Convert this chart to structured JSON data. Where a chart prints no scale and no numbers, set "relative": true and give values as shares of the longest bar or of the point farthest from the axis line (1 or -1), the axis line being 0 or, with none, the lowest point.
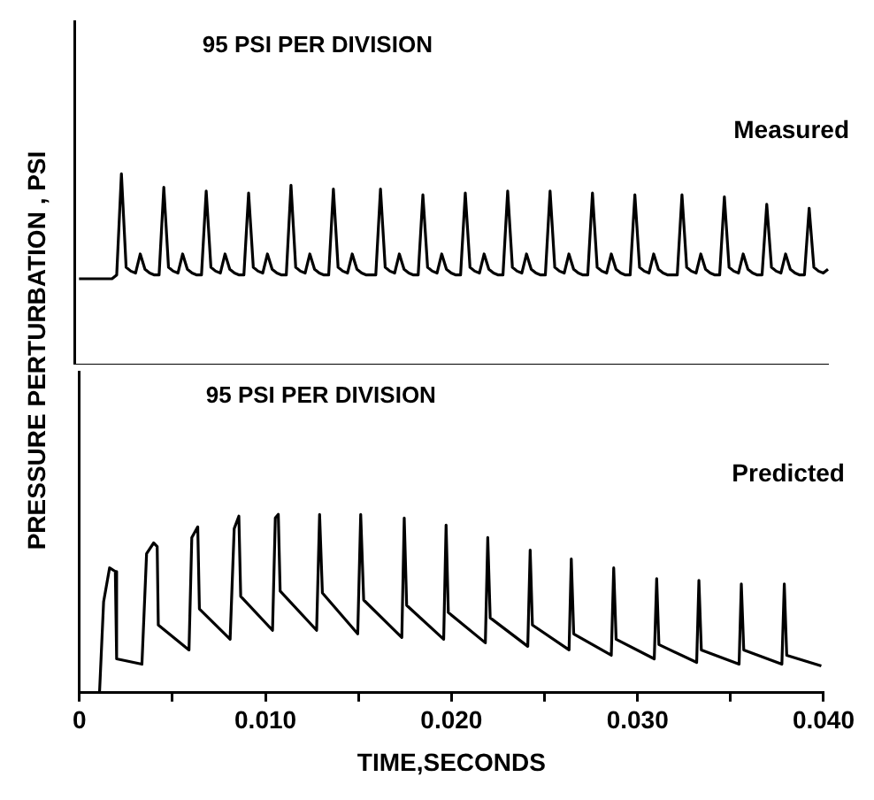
{
  "chart_data": [
    {
      "type": "line",
      "ylabel": "PRESSURE PERTURBATION , PSI",
      "annotations": [
        "95 PSI PER DIVISION"
      ],
      "relative": true,
      "categories": [
        null,
        null,
        null,
        null,
        null,
        null,
        null,
        null,
        null,
        null,
        null,
        null,
        null,
        null,
        null,
        null,
        null,
        null,
        null,
        null,
        null,
        null,
        null,
        null,
        null,
        null,
        null,
        null,
        null,
        null,
        null,
        null,
        null,
        null,
        null,
        null,
        null,
        null,
        null,
        null,
        null,
        null,
        null,
        null,
        null,
        null,
        null,
        null,
        null,
        null,
        null,
        null,
        null,
        null,
        null,
        null,
        null,
        null,
        null,
        null,
        null,
        null,
        null,
        null,
        null,
        null,
        null,
        null,
        null,
        null,
        null,
        null,
        null,
        null,
        null,
        null,
        null,
        null,
        null,
        null,
        null,
        null,
        null,
        null,
        null,
        null,
        null,
        null,
        null,
        null,
        null,
        null,
        null,
        null,
        null,
        null,
        null,
        null,
        null,
        null,
        null,
        null,
        null,
        null,
        null,
        null,
        null,
        null,
        null,
        null,
        null,
        null,
        null,
        null,
        null,
        null,
        null,
        null,
        null,
        null,
        null,
        null,
        null,
        null,
        null,
        null,
        null,
        null,
        null,
        null,
        null,
        null,
        null,
        null,
        null,
        null,
        null,
        null,
        null,
        null,
        null,
        null,
        null,
        null,
        null,
        null,
        null,
        null,
        null,
        null,
        null,
        null,
        null,
        null,
        null,
        null,
        null,
        null,
        null,
        null,
        null
      ],
      "tick_labels": false,
      "grid": false,
      "legend": false,
      "marker": "none",
      "line_style": "solid",
      "series": [
        {
          "name": "Measured",
          "color": "#000000",
          "values": [
            null,
            0.45,
            0.45,
            0.45,
            0.45,
            0.45,
            0.45,
            0.45,
            0.45,
            0.47,
            1.0,
            0.51,
            0.49,
            0.48,
            0.58,
            0.5,
            0.48,
            0.47,
            0.47,
            0.93,
            0.51,
            0.49,
            0.48,
            0.58,
            0.5,
            0.48,
            0.47,
            0.47,
            0.91,
            0.51,
            0.49,
            0.48,
            0.58,
            0.5,
            0.48,
            0.47,
            0.47,
            0.9,
            0.51,
            0.49,
            0.48,
            0.58,
            0.5,
            0.48,
            0.47,
            0.47,
            0.94,
            0.51,
            0.49,
            0.48,
            0.58,
            0.5,
            0.48,
            0.47,
            0.47,
            0.92,
            0.51,
            0.49,
            0.48,
            0.58,
            0.5,
            0.48,
            0.47,
            0.47,
            0.47,
            0.92,
            0.51,
            0.49,
            0.48,
            0.58,
            0.5,
            0.48,
            0.47,
            0.47,
            0.89,
            0.51,
            0.49,
            0.48,
            0.58,
            0.5,
            0.48,
            0.47,
            0.47,
            0.9,
            0.51,
            0.49,
            0.48,
            0.58,
            0.5,
            0.48,
            0.47,
            0.47,
            0.91,
            0.51,
            0.49,
            0.48,
            0.58,
            0.5,
            0.48,
            0.47,
            0.47,
            0.91,
            0.51,
            0.49,
            0.48,
            0.58,
            0.5,
            0.48,
            0.47,
            0.47,
            0.9,
            0.51,
            0.49,
            0.48,
            0.58,
            0.5,
            0.48,
            0.47,
            0.47,
            0.89,
            0.51,
            0.49,
            0.48,
            0.58,
            0.5,
            0.48,
            0.47,
            0.47,
            0.47,
            0.89,
            0.51,
            0.49,
            0.48,
            0.58,
            0.5,
            0.48,
            0.47,
            0.47,
            0.88,
            0.51,
            0.49,
            0.48,
            0.58,
            0.5,
            0.48,
            0.47,
            0.47,
            0.84,
            0.51,
            0.49,
            0.48,
            0.58,
            0.5,
            0.48,
            0.47,
            0.47,
            0.82,
            0.51,
            0.49,
            0.48,
            0.5
          ]
        }
      ]
    },
    {
      "type": "line",
      "xlabel": "TIME,SECONDS",
      "annotations": [
        "95 PSI PER DIVISION"
      ],
      "relative": true,
      "xlim": [
        0,
        0.04
      ],
      "xticks": [
        0,
        {
          "value": 0.005,
          "label": null
        },
        {
          "value": 0.01,
          "label": "0.010"
        },
        {
          "value": 0.015,
          "label": null
        },
        {
          "value": 0.02,
          "label": "0.020"
        },
        {
          "value": 0.025,
          "label": null
        },
        {
          "value": 0.03,
          "label": "0.030"
        },
        {
          "value": 0.035,
          "label": null
        },
        {
          "value": 0.04,
          "label": "0.040"
        }
      ],
      "tick_labels": "x",
      "grid": false,
      "legend": false,
      "marker": "none",
      "line_style": "solid",
      "series": [
        {
          "name": "Predicted",
          "color": "#000000",
          "x": [
            0.0,
            0.00108,
            0.0013,
            0.00162,
            0.00193,
            0.002,
            0.00336,
            0.00361,
            0.00399,
            0.00418,
            0.00424,
            0.00589,
            0.00604,
            0.00636,
            0.00645,
            0.0081,
            0.00832,
            0.00857,
            0.00867,
            0.01038,
            0.01053,
            0.01069,
            0.01079,
            0.01275,
            0.01291,
            0.01306,
            0.01496,
            0.01512,
            0.01528,
            0.01733,
            0.01746,
            0.01759,
            0.01958,
            0.01971,
            0.01983,
            0.02182,
            0.02195,
            0.02208,
            0.0241,
            0.02423,
            0.02435,
            0.02632,
            0.02644,
            0.02657,
            0.02859,
            0.02872,
            0.02885,
            0.0309,
            0.03103,
            0.03115,
            0.03318,
            0.0333,
            0.03343,
            0.03546,
            0.03558,
            0.03571,
            0.03776,
            0.03789,
            0.03802,
            0.03988
          ],
          "values": [
            0,
            0,
            0.51,
            0.7,
            0.68,
            0.19,
            0.16,
            0.78,
            0.84,
            0.82,
            0.38,
            0.24,
            0.87,
            0.93,
            0.47,
            0.3,
            0.92,
            0.99,
            0.54,
            0.35,
            0.98,
            1.0,
            0.57,
            0.35,
            1.0,
            0.56,
            0.33,
            1.0,
            0.52,
            0.31,
            0.98,
            0.49,
            0.3,
            0.94,
            0.45,
            0.28,
            0.87,
            0.42,
            0.26,
            0.8,
            0.38,
            0.24,
            0.75,
            0.33,
            0.21,
            0.7,
            0.3,
            0.19,
            0.64,
            0.27,
            0.17,
            0.63,
            0.24,
            0.16,
            0.61,
            0.24,
            0.16,
            0.61,
            0.21,
            0.15
          ]
        }
      ]
    }
  ]
}
